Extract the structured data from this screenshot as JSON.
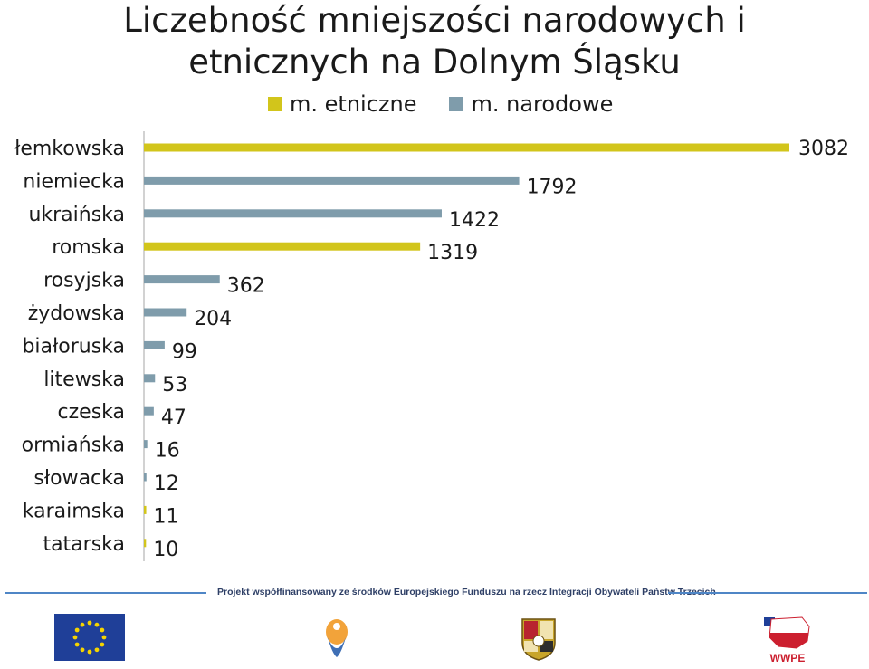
{
  "chart_data": {
    "type": "bar",
    "orientation": "horizontal",
    "title_lines": [
      "Liczebność mniejszości narodowych i",
      "etnicznych na Dolnym Śląsku"
    ],
    "legend": [
      {
        "name": "m. etniczne",
        "color": "#d2c51b"
      },
      {
        "name": "m. narodowe",
        "color": "#7f9cab"
      }
    ],
    "legend_position": "top",
    "bars": [
      {
        "category": "łemkowska",
        "value": 3082,
        "group": "m. etniczne"
      },
      {
        "category": "niemiecka",
        "value": 1792,
        "group": "m. narodowe"
      },
      {
        "category": "ukraińska",
        "value": 1422,
        "group": "m. narodowe"
      },
      {
        "category": "romska",
        "value": 1319,
        "group": "m. etniczne"
      },
      {
        "category": "rosyjska",
        "value": 362,
        "group": "m. narodowe"
      },
      {
        "category": "żydowska",
        "value": 204,
        "group": "m. narodowe"
      },
      {
        "category": "białoruska",
        "value": 99,
        "group": "m. narodowe"
      },
      {
        "category": "litewska",
        "value": 53,
        "group": "m. narodowe"
      },
      {
        "category": "czeska",
        "value": 47,
        "group": "m. narodowe"
      },
      {
        "category": "ormiańska",
        "value": 16,
        "group": "m. narodowe"
      },
      {
        "category": "słowacka",
        "value": 12,
        "group": "m. narodowe"
      },
      {
        "category": "karaimska",
        "value": 11,
        "group": "m. etniczne"
      },
      {
        "category": "tatarska",
        "value": 10,
        "group": "m. etniczne"
      }
    ],
    "xlim": [
      0,
      3082
    ],
    "grid": false
  },
  "footer": {
    "text": "Projekt współfinansowany ze środków Europejskiego Funduszu na rzecz Integracji Obywateli Państw Trzecich",
    "wwpe_text": "WWPE"
  }
}
